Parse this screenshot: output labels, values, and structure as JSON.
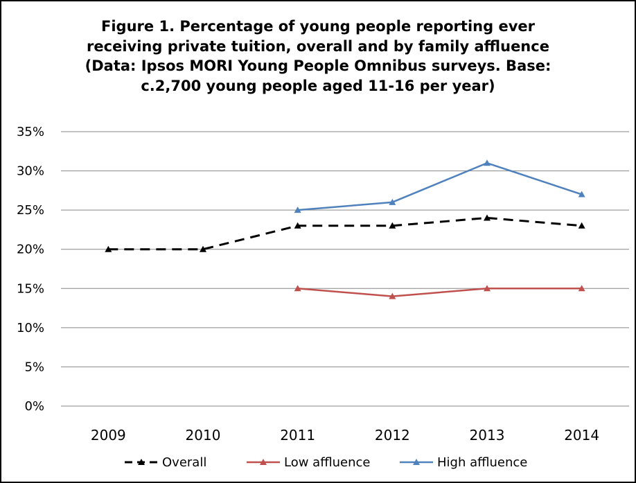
{
  "chart_data": {
    "type": "line",
    "title_lines": [
      "Figure 1. Percentage of young people reporting ever",
      "receiving private tuition, overall and by family affluence",
      "(Data: Ipsos MORI Young People Omnibus surveys. Base:",
      "c.2,700 young people aged 11-16 per year)"
    ],
    "xlabel": "",
    "ylabel": "",
    "categories": [
      "2009",
      "2010",
      "2011",
      "2012",
      "2013",
      "2014"
    ],
    "ylim": [
      0,
      35
    ],
    "yticks": [
      "0%",
      "5%",
      "10%",
      "15%",
      "20%",
      "25%",
      "30%",
      "35%"
    ],
    "ytick_values": [
      0,
      5,
      10,
      15,
      20,
      25,
      30,
      35
    ],
    "grid": "horizontal",
    "legend_position": "bottom",
    "series": [
      {
        "name": "Overall",
        "color": "#000000",
        "style": "dashed",
        "marker": "triangle",
        "values": [
          20,
          20,
          23,
          23,
          24,
          23
        ]
      },
      {
        "name": "Low affluence",
        "color": "#C0504D",
        "style": "solid",
        "marker": "triangle",
        "values": [
          null,
          null,
          15,
          14,
          15,
          15
        ]
      },
      {
        "name": "High affluence",
        "color": "#4F81BD",
        "style": "solid",
        "marker": "triangle",
        "values": [
          null,
          null,
          25,
          26,
          31,
          27
        ]
      }
    ]
  }
}
